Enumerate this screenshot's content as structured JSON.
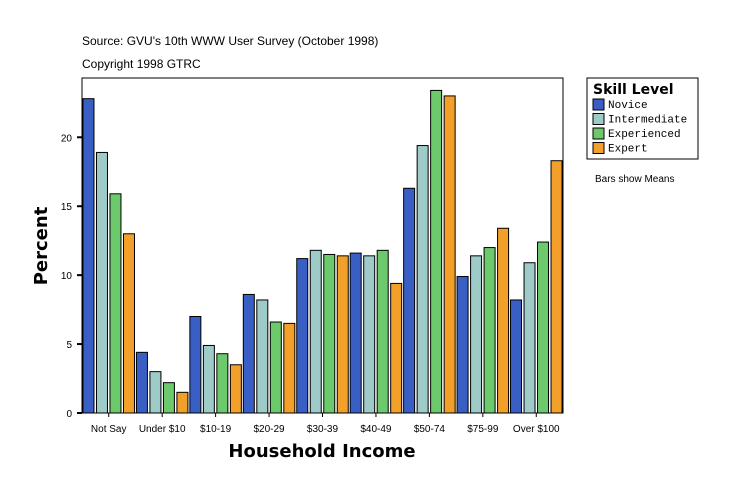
{
  "chart_data": {
    "type": "bar",
    "source_note": "Source: GVU's 10th WWW User Survey (October 1998)",
    "copyright_note": "Copyright 1998 GTRC",
    "xlabel": "Household Income",
    "ylabel": "Percent",
    "ylim": [
      0,
      24.3
    ],
    "yticks": [
      0,
      5,
      10,
      15,
      20
    ],
    "grid": false,
    "legend": {
      "title": "Skill Level",
      "placement": "right"
    },
    "footnote": "Bars show Means",
    "categories": [
      "Not Say",
      "Under $10",
      "$10-19",
      "$20-29",
      "$30-39",
      "$40-49",
      "$50-74",
      "$75-99",
      "Over $100"
    ],
    "series": [
      {
        "name": "Novice",
        "color": "#3a5fc4",
        "values": [
          22.8,
          4.4,
          7.0,
          8.6,
          11.2,
          11.6,
          16.3,
          9.9,
          8.2
        ]
      },
      {
        "name": "Intermediate",
        "color": "#9ecac8",
        "values": [
          18.9,
          3.0,
          4.9,
          8.2,
          11.8,
          11.4,
          19.4,
          11.4,
          10.9
        ]
      },
      {
        "name": "Experienced",
        "color": "#6cc96c",
        "values": [
          15.9,
          2.2,
          4.3,
          6.6,
          11.5,
          11.8,
          23.4,
          12.0,
          12.4
        ]
      },
      {
        "name": "Expert",
        "color": "#f2a02a",
        "values": [
          13.0,
          1.5,
          3.5,
          6.5,
          11.4,
          9.4,
          23.0,
          13.4,
          18.3
        ]
      }
    ]
  }
}
